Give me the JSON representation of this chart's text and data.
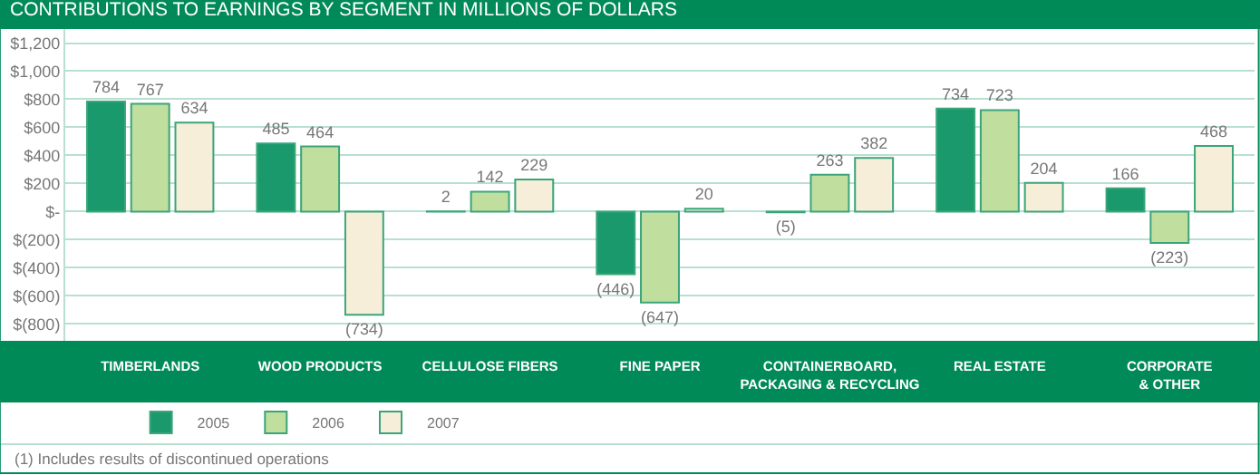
{
  "chart_data": {
    "type": "bar",
    "title": "CONTRIBUTIONS TO EARNINGS BY SEGMENT IN MILLIONS OF DOLLARS",
    "categories": [
      "TIMBERLANDS",
      "WOOD PRODUCTS",
      "CELLULOSE FIBERS",
      "FINE PAPER",
      "CONTAINERBOARD, PACKAGING & RECYCLING",
      "REAL ESTATE",
      "CORPORATE & OTHER"
    ],
    "series": [
      {
        "name": "2005",
        "color": "#1a9a6c",
        "values": [
          784,
          485,
          2,
          -446,
          -5,
          734,
          166
        ],
        "value_labels": [
          "784",
          "485",
          "2",
          "(446)",
          "(5)",
          "734",
          "166"
        ]
      },
      {
        "name": "2006",
        "color": "#c0df9e",
        "values": [
          767,
          464,
          142,
          -647,
          263,
          723,
          -223
        ],
        "value_labels": [
          "767",
          "464",
          "142",
          "(647)",
          "263",
          "723",
          "(223)"
        ]
      },
      {
        "name": "2007",
        "color": "#f6eed8",
        "values": [
          634,
          -734,
          229,
          20,
          382,
          204,
          468
        ],
        "value_labels": [
          "634",
          "(734)",
          "229",
          "20",
          "382",
          "204",
          "468"
        ]
      }
    ],
    "ylim": [
      -920,
      1300
    ],
    "yticks": [
      {
        "value": 1200,
        "label": "$1,200"
      },
      {
        "value": 1000,
        "label": "$1,000"
      },
      {
        "value": 800,
        "label": "$800"
      },
      {
        "value": 600,
        "label": "$600"
      },
      {
        "value": 400,
        "label": "$400"
      },
      {
        "value": 200,
        "label": "$200"
      },
      {
        "value": 0,
        "label": "$-"
      },
      {
        "value": -200,
        "label": "$(200)"
      },
      {
        "value": -400,
        "label": "$(400)"
      },
      {
        "value": -600,
        "label": "$(600)"
      },
      {
        "value": -800,
        "label": "$(800)"
      }
    ],
    "grid": "y",
    "legend": "bottom",
    "annotations": [
      "(1) Includes results of discontinued operations"
    ]
  }
}
